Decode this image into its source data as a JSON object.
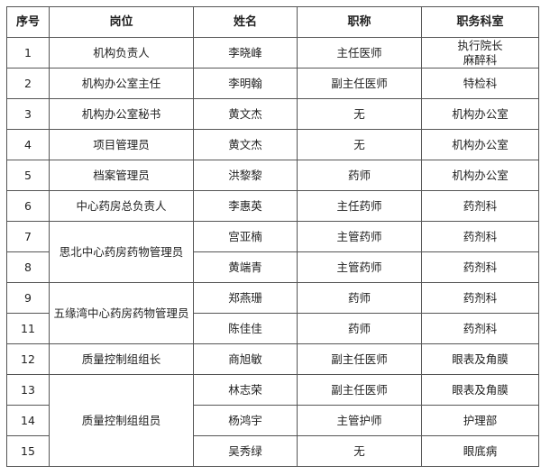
{
  "headers": [
    "序号",
    "岗位",
    "姓名",
    "职称",
    "职务科室"
  ],
  "rows": [
    {
      "no": "1",
      "post": "机构负责人",
      "name": "李晓峰",
      "title": "主任医师",
      "dept": "执行院长",
      "dept2": "麻醉科"
    },
    {
      "no": "2",
      "post": "机构办公室主任",
      "name": "李明翰",
      "title": "副主任医师",
      "dept": "特检科"
    },
    {
      "no": "3",
      "post": "机构办公室秘书",
      "name": "黄文杰",
      "title": "无",
      "dept": "机构办公室"
    },
    {
      "no": "4",
      "post": "项目管理员",
      "name": "黄文杰",
      "title": "无",
      "dept": "机构办公室"
    },
    {
      "no": "5",
      "post": "档案管理员",
      "name": "洪黎黎",
      "title": "药师",
      "dept": "机构办公室"
    },
    {
      "no": "6",
      "post": "中心药房总负责人",
      "name": "李惠英",
      "title": "主任药师",
      "dept": "药剂科"
    },
    {
      "no": "7",
      "post": "思北中心药房药物管理员",
      "name": "宫亚楠",
      "title": "主管药师",
      "dept": "药剂科"
    },
    {
      "no": "8",
      "name": "黄端青",
      "title": "主管药师",
      "dept": "药剂科"
    },
    {
      "no": "9",
      "post": "五缘湾中心药房药物管理员",
      "name": "郑燕珊",
      "title": "药师",
      "dept": "药剂科"
    },
    {
      "no": "11",
      "name": "陈佳佳",
      "title": "药师",
      "dept": "药剂科"
    },
    {
      "no": "12",
      "post": "质量控制组组长",
      "name": "商旭敏",
      "title": "副主任医师",
      "dept": "眼表及角膜"
    },
    {
      "no": "13",
      "post": "质量控制组组员",
      "name": "林志荣",
      "title": "副主任医师",
      "dept": "眼表及角膜"
    },
    {
      "no": "14",
      "name": "杨鸿宇",
      "title": "主管护师",
      "dept": "护理部"
    },
    {
      "no": "15",
      "name": "吴秀绿",
      "title": "无",
      "dept": "眼底病"
    }
  ]
}
